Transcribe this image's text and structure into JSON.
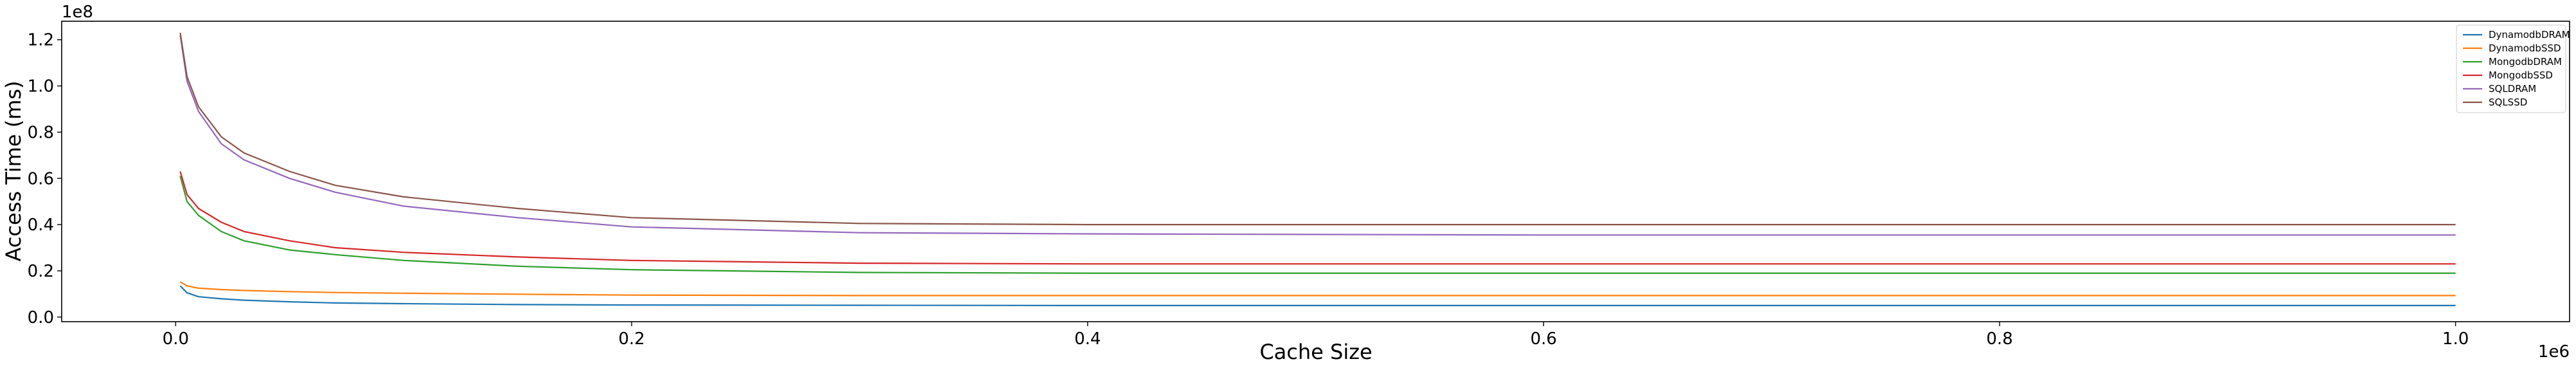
{
  "chart_data": {
    "type": "line",
    "xlabel": "Cache Size",
    "ylabel": "Access Time (ms)",
    "x_offset_label": "1e6",
    "y_offset_label": "1e8",
    "xlim": [
      -0.05,
      1.05
    ],
    "ylim": [
      -0.02,
      1.28
    ],
    "x_scale": 1000000,
    "y_scale": 100000000,
    "xticks": [
      0.0,
      0.2,
      0.4,
      0.6,
      0.8,
      1.0
    ],
    "xtick_labels": [
      "0.0",
      "0.2",
      "0.4",
      "0.6",
      "0.8",
      "1.0"
    ],
    "yticks": [
      0.0,
      0.2,
      0.4,
      0.6,
      0.8,
      1.0,
      1.2
    ],
    "ytick_labels": [
      "0.0",
      "0.2",
      "0.4",
      "0.6",
      "0.8",
      "1.0",
      "1.2"
    ],
    "legend_position": "top-right",
    "x": [
      0.002,
      0.005,
      0.01,
      0.02,
      0.03,
      0.05,
      0.07,
      0.1,
      0.15,
      0.2,
      0.3,
      0.4,
      0.6,
      0.8,
      1.0
    ],
    "series": [
      {
        "name": "DynamodbDRAM",
        "color": "#1f77b4",
        "values": [
          0.135,
          0.105,
          0.088,
          0.079,
          0.073,
          0.066,
          0.061,
          0.058,
          0.054,
          0.052,
          0.051,
          0.05,
          0.05,
          0.05,
          0.05
        ]
      },
      {
        "name": "DynamodbSSD",
        "color": "#ff7f0e",
        "values": [
          0.152,
          0.135,
          0.125,
          0.119,
          0.115,
          0.11,
          0.106,
          0.103,
          0.099,
          0.095,
          0.093,
          0.093,
          0.093,
          0.093,
          0.093
        ]
      },
      {
        "name": "MongodbDRAM",
        "color": "#2ca02c",
        "values": [
          0.61,
          0.5,
          0.44,
          0.37,
          0.33,
          0.29,
          0.27,
          0.245,
          0.22,
          0.205,
          0.193,
          0.19,
          0.19,
          0.19,
          0.19
        ]
      },
      {
        "name": "MongodbSSD",
        "color": "#d62728",
        "values": [
          0.63,
          0.53,
          0.47,
          0.41,
          0.37,
          0.33,
          0.3,
          0.28,
          0.26,
          0.245,
          0.233,
          0.23,
          0.23,
          0.23,
          0.23
        ]
      },
      {
        "name": "SQLDRAM",
        "color": "#9467bd",
        "values": [
          1.22,
          1.02,
          0.89,
          0.75,
          0.68,
          0.6,
          0.54,
          0.48,
          0.43,
          0.39,
          0.365,
          0.36,
          0.355,
          0.355,
          0.355
        ]
      },
      {
        "name": "SQLSSD",
        "color": "#8c564b",
        "values": [
          1.23,
          1.04,
          0.91,
          0.78,
          0.71,
          0.63,
          0.57,
          0.52,
          0.47,
          0.43,
          0.405,
          0.4,
          0.4,
          0.4,
          0.4
        ]
      }
    ]
  }
}
